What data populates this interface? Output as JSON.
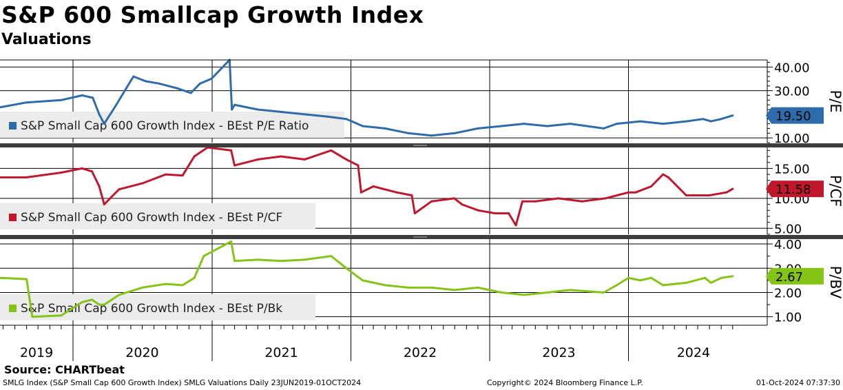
{
  "header": {
    "title": "S&P 600 Smallcap Growth Index",
    "subtitle": "Valuations"
  },
  "source": "Source: CHARTbeat",
  "footer": {
    "left": "SMLG Index (S&P Small Cap 600 Growth Index) SMLG Valuations  Daily 23JUN2019-01OCT2024",
    "middle": "Copyright© 2024 Bloomberg Finance L.P.",
    "right": "01-Oct-2024 07:37:30"
  },
  "chart_data": {
    "type": "line",
    "x_axis": {
      "start": "2019-06-23",
      "end": "2024-10-01",
      "year_labels": [
        "2019",
        "2020",
        "2021",
        "2022",
        "2023",
        "2024"
      ]
    },
    "grid": true,
    "legend_placement": "bottom-left of each panel",
    "panels": [
      {
        "id": "pe",
        "axis_label": "P/E",
        "legend": "S&P Small Cap 600 Growth Index - BEst P/E Ratio",
        "color": "#2e6bab",
        "last_value": "19.50",
        "ylim": [
          8,
          43
        ],
        "ticks": [
          10,
          30,
          40
        ],
        "tick_labels": [
          "10.00",
          "30.00",
          "40.00"
        ],
        "x": [
          "2019-06-24",
          "2019-09-01",
          "2019-12-01",
          "2020-01-25",
          "2020-02-22",
          "2020-03-10",
          "2020-03-23",
          "2020-04-20",
          "2020-05-20",
          "2020-06-08",
          "2020-07-10",
          "2020-08-15",
          "2020-10-01",
          "2020-11-06",
          "2020-11-30",
          "2020-12-30",
          "2021-02-16",
          "2021-02-22",
          "2021-03-01",
          "2021-05-01",
          "2021-07-01",
          "2021-09-01",
          "2021-11-01",
          "2021-12-20",
          "2022-02-01",
          "2022-04-01",
          "2022-06-01",
          "2022-08-01",
          "2022-10-01",
          "2022-12-01",
          "2023-02-01",
          "2023-04-01",
          "2023-06-01",
          "2023-08-01",
          "2023-10-28",
          "2023-12-01",
          "2024-02-01",
          "2024-04-01",
          "2024-06-01",
          "2024-07-15",
          "2024-08-05",
          "2024-09-01",
          "2024-10-01"
        ],
        "values": [
          23,
          25,
          26,
          28,
          27,
          20,
          16,
          23,
          31,
          36,
          34,
          33,
          31,
          29,
          33,
          35,
          43,
          22,
          24,
          22,
          21,
          20,
          19,
          18,
          15,
          14,
          12,
          11,
          12,
          14,
          15,
          16,
          15,
          16,
          14,
          16,
          17,
          16,
          17,
          18,
          17,
          18,
          19.5
        ]
      },
      {
        "id": "pcf",
        "axis_label": "P/CF",
        "legend": "S&P Small Cap 600 Growth Index - BEst P/CF",
        "color": "#c0172d",
        "last_value": "11.58",
        "ylim": [
          4,
          18.5
        ],
        "ticks": [
          5,
          10,
          15
        ],
        "tick_labels": [
          "5.00",
          "10.00",
          "15.00"
        ],
        "x": [
          "2019-06-24",
          "2019-09-01",
          "2019-12-01",
          "2020-01-25",
          "2020-02-20",
          "2020-03-10",
          "2020-03-23",
          "2020-05-01",
          "2020-07-01",
          "2020-09-01",
          "2020-10-15",
          "2020-11-15",
          "2020-12-20",
          "2021-02-20",
          "2021-03-01",
          "2021-05-01",
          "2021-07-01",
          "2021-09-01",
          "2021-11-10",
          "2021-12-20",
          "2022-01-20",
          "2022-01-28",
          "2022-03-01",
          "2022-05-01",
          "2022-06-10",
          "2022-06-18",
          "2022-08-01",
          "2022-09-30",
          "2022-10-20",
          "2022-12-01",
          "2023-01-15",
          "2023-02-20",
          "2023-03-11",
          "2023-03-28",
          "2023-05-01",
          "2023-07-01",
          "2023-09-01",
          "2023-11-01",
          "2024-01-01",
          "2024-01-20",
          "2024-03-01",
          "2024-04-01",
          "2024-04-15",
          "2024-06-01",
          "2024-08-01",
          "2024-09-15",
          "2024-10-01"
        ],
        "values": [
          13.5,
          13.5,
          14.3,
          15,
          14.5,
          12,
          9,
          11.5,
          12.5,
          14,
          13.8,
          17,
          19,
          18,
          15.5,
          16.5,
          17,
          16.5,
          18,
          16.5,
          15.5,
          11,
          12,
          11,
          10.5,
          7.5,
          9.5,
          10,
          9,
          8,
          7.5,
          7.5,
          5.5,
          9.5,
          9.5,
          10,
          9.5,
          10,
          11,
          11,
          12,
          14,
          13.5,
          10.5,
          10.5,
          11,
          11.58
        ]
      },
      {
        "id": "pbv",
        "axis_label": "P/BV",
        "legend": "S&P Small Cap 600 Growth Index - BEst P/Bk",
        "color": "#84c417",
        "last_value": "2.67",
        "ylim": [
          0.65,
          4.2
        ],
        "ticks": [
          1,
          2,
          3,
          4
        ],
        "tick_labels": [
          "1.00",
          "2.00",
          "3.00",
          "4.00"
        ],
        "x": [
          "2019-06-24",
          "2019-09-01",
          "2019-09-16",
          "2019-12-01",
          "2020-01-25",
          "2020-02-20",
          "2020-03-10",
          "2020-03-23",
          "2020-05-01",
          "2020-07-01",
          "2020-09-01",
          "2020-10-15",
          "2020-11-15",
          "2020-12-10",
          "2021-02-20",
          "2021-03-01",
          "2021-05-01",
          "2021-07-01",
          "2021-09-01",
          "2021-11-10",
          "2021-12-20",
          "2022-02-01",
          "2022-04-01",
          "2022-06-01",
          "2022-08-01",
          "2022-10-01",
          "2022-12-01",
          "2023-02-01",
          "2023-04-01",
          "2023-06-01",
          "2023-08-01",
          "2023-10-28",
          "2023-12-01",
          "2024-01-01",
          "2024-02-01",
          "2024-03-01",
          "2024-04-01",
          "2024-06-01",
          "2024-07-20",
          "2024-08-05",
          "2024-09-01",
          "2024-10-01"
        ],
        "values": [
          2.6,
          2.55,
          1.0,
          1.05,
          1.6,
          1.7,
          1.5,
          1.5,
          1.9,
          2.2,
          2.35,
          2.3,
          2.6,
          3.5,
          4.1,
          3.3,
          3.35,
          3.3,
          3.35,
          3.5,
          3.0,
          2.5,
          2.3,
          2.2,
          2.2,
          2.1,
          2.2,
          2.0,
          1.9,
          2.0,
          2.1,
          2.0,
          2.3,
          2.6,
          2.5,
          2.6,
          2.3,
          2.4,
          2.6,
          2.4,
          2.6,
          2.67
        ]
      }
    ]
  }
}
